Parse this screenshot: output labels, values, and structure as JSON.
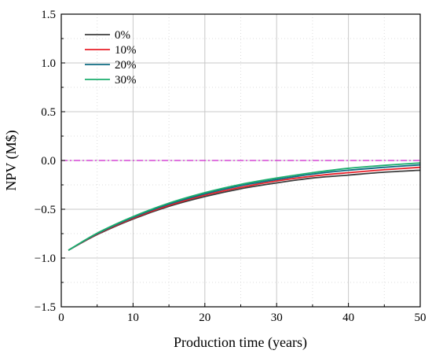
{
  "chart_data": {
    "type": "line",
    "title": "",
    "xlabel": "Production time (years)",
    "ylabel": "NPV (M$)",
    "xlim": [
      0,
      50
    ],
    "ylim": [
      -1.5,
      1.5
    ],
    "xticks": [
      0,
      10,
      20,
      30,
      40,
      50
    ],
    "yticks": [
      -1.5,
      -1.0,
      -0.5,
      0.0,
      0.5,
      1.0,
      1.5
    ],
    "ytick_labels": [
      "−1.5",
      "−1.0",
      "−0.5",
      "0.0",
      "0.5",
      "1.0",
      "1.5"
    ],
    "grid": true,
    "legend": "top-left",
    "x": [
      1,
      5,
      10,
      15,
      20,
      25,
      30,
      35,
      40,
      45,
      50
    ],
    "series": [
      {
        "name": "0%",
        "color": "#3d3d3d",
        "values": [
          -0.92,
          -0.76,
          -0.6,
          -0.47,
          -0.37,
          -0.29,
          -0.23,
          -0.18,
          -0.15,
          -0.12,
          -0.1
        ]
      },
      {
        "name": "10%",
        "color": "#e8202a",
        "values": [
          -0.92,
          -0.755,
          -0.592,
          -0.46,
          -0.355,
          -0.275,
          -0.21,
          -0.16,
          -0.125,
          -0.095,
          -0.07
        ]
      },
      {
        "name": "20%",
        "color": "#0e6c82",
        "values": [
          -0.92,
          -0.75,
          -0.583,
          -0.448,
          -0.342,
          -0.258,
          -0.195,
          -0.14,
          -0.1,
          -0.07,
          -0.045
        ]
      },
      {
        "name": "30%",
        "color": "#1cae6e",
        "values": [
          -0.92,
          -0.745,
          -0.575,
          -0.437,
          -0.33,
          -0.245,
          -0.18,
          -0.125,
          -0.08,
          -0.05,
          -0.025
        ]
      }
    ],
    "reference_line": {
      "y": 0.0,
      "color": "#cc22cc"
    }
  }
}
